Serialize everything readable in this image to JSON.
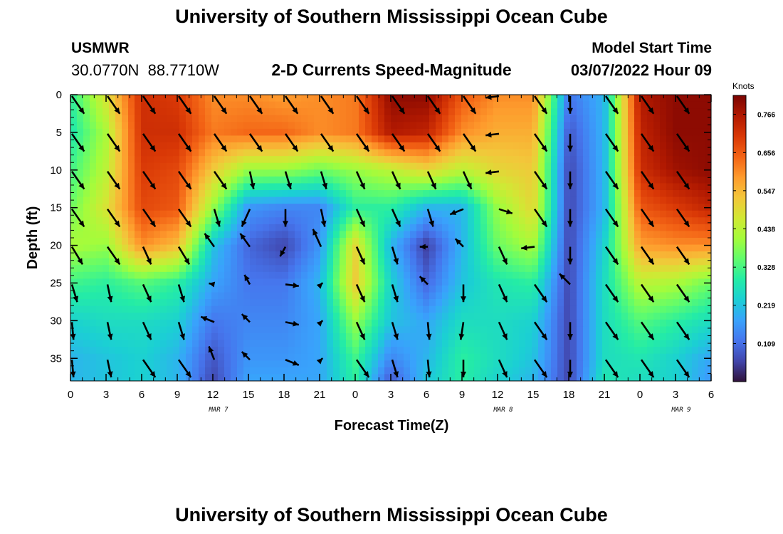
{
  "header": {
    "title": "University of Southern Mississippi Ocean Cube",
    "station": "USMWR",
    "latitude": "30.0770N",
    "longitude": "88.7710W",
    "subtitle": "2-D Currents Speed-Magnitude",
    "model_start_label": "Model Start Time",
    "model_start_value": "03/07/2022 Hour 09"
  },
  "footer": {
    "title": "University of Southern Mississippi Ocean Cube"
  },
  "chart_data": {
    "type": "heatmap",
    "xlabel": "Forecast Time(Z)",
    "ylabel": "Depth (ft)",
    "colorbar_label": "Knots",
    "colorbar_ticks": [
      0.109,
      0.219,
      0.328,
      0.438,
      0.547,
      0.656,
      0.766
    ],
    "color_range": [
      0.0,
      0.82
    ],
    "colormap": [
      "#30123b",
      "#4145ab",
      "#4675ed",
      "#39a2fc",
      "#1bcfd4",
      "#24eca6",
      "#61fc6c",
      "#a4fc3b",
      "#d1e834",
      "#f3c63a",
      "#fe9b2d",
      "#f36315",
      "#d93806",
      "#b11901",
      "#7a0402"
    ],
    "x_ticks": [
      "0",
      "3",
      "6",
      "9",
      "12",
      "15",
      "18",
      "21",
      "0",
      "3",
      "6",
      "9",
      "12",
      "15",
      "18",
      "21",
      "0",
      "3",
      "6"
    ],
    "date_labels": [
      {
        "hour": 15,
        "label": "MAR 7"
      },
      {
        "hour": 39,
        "label": "MAR 8"
      },
      {
        "hour": 63,
        "label": "MAR 9"
      }
    ],
    "x_range_hours": [
      0,
      54
    ],
    "y_ticks": [
      0,
      5,
      10,
      15,
      20,
      25,
      30,
      35
    ],
    "ylim": [
      0,
      38
    ],
    "depths_ft": [
      0,
      5,
      10,
      15,
      20,
      25,
      30,
      35,
      38
    ],
    "times_hours": [
      0,
      3,
      6,
      9,
      12,
      15,
      18,
      21,
      24,
      27,
      30,
      33,
      36,
      39,
      42,
      45,
      48,
      51,
      54
    ],
    "speed_knots": [
      [
        0.3,
        0.48,
        0.72,
        0.7,
        0.6,
        0.6,
        0.58,
        0.6,
        0.62,
        0.8,
        0.8,
        0.66,
        0.6,
        0.6,
        0.12,
        0.2,
        0.76,
        0.8,
        0.8
      ],
      [
        0.28,
        0.42,
        0.72,
        0.72,
        0.62,
        0.64,
        0.64,
        0.6,
        0.62,
        0.76,
        0.74,
        0.6,
        0.56,
        0.56,
        0.08,
        0.2,
        0.74,
        0.8,
        0.8
      ],
      [
        0.32,
        0.44,
        0.7,
        0.68,
        0.52,
        0.4,
        0.4,
        0.36,
        0.4,
        0.44,
        0.5,
        0.44,
        0.5,
        0.52,
        0.06,
        0.2,
        0.72,
        0.78,
        0.8
      ],
      [
        0.36,
        0.48,
        0.68,
        0.66,
        0.4,
        0.16,
        0.14,
        0.14,
        0.3,
        0.3,
        0.2,
        0.2,
        0.4,
        0.5,
        0.06,
        0.2,
        0.66,
        0.7,
        0.74
      ],
      [
        0.42,
        0.4,
        0.6,
        0.54,
        0.22,
        0.1,
        0.06,
        0.16,
        0.5,
        0.2,
        0.05,
        0.2,
        0.36,
        0.42,
        0.06,
        0.24,
        0.58,
        0.6,
        0.6
      ],
      [
        0.32,
        0.3,
        0.34,
        0.3,
        0.18,
        0.12,
        0.12,
        0.2,
        0.52,
        0.24,
        0.1,
        0.22,
        0.28,
        0.3,
        0.06,
        0.26,
        0.44,
        0.42,
        0.36
      ],
      [
        0.24,
        0.26,
        0.26,
        0.24,
        0.12,
        0.14,
        0.14,
        0.18,
        0.4,
        0.22,
        0.18,
        0.26,
        0.26,
        0.24,
        0.06,
        0.26,
        0.34,
        0.3,
        0.26
      ],
      [
        0.2,
        0.22,
        0.24,
        0.2,
        0.08,
        0.16,
        0.16,
        0.18,
        0.32,
        0.14,
        0.2,
        0.3,
        0.26,
        0.22,
        0.06,
        0.26,
        0.28,
        0.24,
        0.18
      ],
      [
        0.2,
        0.22,
        0.24,
        0.2,
        0.06,
        0.18,
        0.18,
        0.18,
        0.3,
        0.08,
        0.22,
        0.3,
        0.24,
        0.2,
        0.06,
        0.28,
        0.26,
        0.24,
        0.16
      ]
    ],
    "vectors": [
      {
        "t": 0,
        "d": [
          [
            2.3,
            3.3
          ],
          [
            2.3,
            3.3
          ],
          [
            2.3,
            3.3
          ],
          [
            2.3,
            3.3
          ],
          [
            2.0,
            3.3
          ],
          [
            1.0,
            3.3
          ],
          [
            0.3,
            3.3
          ],
          [
            0.3,
            3.3
          ]
        ]
      },
      {
        "t": 3,
        "d": [
          [
            2.3,
            3.3
          ],
          [
            2.3,
            3.3
          ],
          [
            2.3,
            3.3
          ],
          [
            2.3,
            3.3
          ],
          [
            2.3,
            3.3
          ],
          [
            0.7,
            3.3
          ],
          [
            0.7,
            3.3
          ],
          [
            0.7,
            3.3
          ]
        ]
      },
      {
        "t": 6,
        "d": [
          [
            2.3,
            3.3
          ],
          [
            2.3,
            3.3
          ],
          [
            2.3,
            3.3
          ],
          [
            2.3,
            3.3
          ],
          [
            1.5,
            3.3
          ],
          [
            1.5,
            3.3
          ],
          [
            1.5,
            3.3
          ],
          [
            2.3,
            3.3
          ]
        ]
      },
      {
        "t": 9,
        "d": [
          [
            2.3,
            3.3
          ],
          [
            2.3,
            3.3
          ],
          [
            2.3,
            3.3
          ],
          [
            2.3,
            3.3
          ],
          [
            2.0,
            3.3
          ],
          [
            1.0,
            3.3
          ],
          [
            1.0,
            3.3
          ],
          [
            2.3,
            3.3
          ]
        ]
      },
      {
        "t": 12,
        "d": [
          [
            2.3,
            3.3
          ],
          [
            2.3,
            3.3
          ],
          [
            2.3,
            3.3
          ],
          [
            1.0,
            3.3
          ],
          [
            -1.8,
            -2.5
          ],
          [
            -1.0,
            -0.2
          ],
          [
            -2.5,
            -1.0
          ],
          [
            -1.0,
            -2.5
          ]
        ]
      },
      {
        "t": 15,
        "d": [
          [
            2.3,
            3.3
          ],
          [
            2.3,
            3.3
          ],
          [
            0.7,
            3.3
          ],
          [
            -1.5,
            3.3
          ],
          [
            -1.8,
            -2.5
          ],
          [
            -1.0,
            -1.8
          ],
          [
            -1.5,
            -1.5
          ],
          [
            -1.5,
            -1.5
          ]
        ]
      },
      {
        "t": 18,
        "d": [
          [
            2.3,
            3.3
          ],
          [
            2.3,
            3.3
          ],
          [
            1.0,
            3.3
          ],
          [
            0.0,
            3.3
          ],
          [
            -1.0,
            1.8
          ],
          [
            2.5,
            0.3
          ],
          [
            2.5,
            0.5
          ],
          [
            2.5,
            1.0
          ]
        ]
      },
      {
        "t": 21,
        "d": [
          [
            2.3,
            3.3
          ],
          [
            2.3,
            3.3
          ],
          [
            1.0,
            3.3
          ],
          [
            0.7,
            3.3
          ],
          [
            -1.5,
            -3.3
          ],
          [
            0.3,
            -0.3
          ],
          [
            0.3,
            -0.3
          ],
          [
            0.3,
            -0.3
          ]
        ]
      },
      {
        "t": 24,
        "d": [
          [
            2.3,
            3.3
          ],
          [
            2.3,
            3.3
          ],
          [
            1.5,
            3.3
          ],
          [
            1.5,
            3.3
          ],
          [
            1.5,
            3.3
          ],
          [
            1.5,
            3.3
          ],
          [
            1.5,
            3.3
          ],
          [
            2.3,
            3.3
          ]
        ]
      },
      {
        "t": 27,
        "d": [
          [
            2.3,
            3.3
          ],
          [
            2.3,
            3.3
          ],
          [
            1.5,
            3.3
          ],
          [
            1.5,
            3.3
          ],
          [
            1.0,
            3.3
          ],
          [
            1.0,
            3.3
          ],
          [
            1.0,
            3.3
          ],
          [
            1.0,
            3.3
          ]
        ]
      },
      {
        "t": 30,
        "d": [
          [
            2.3,
            3.3
          ],
          [
            2.3,
            3.3
          ],
          [
            1.5,
            3.3
          ],
          [
            1.0,
            3.3
          ],
          [
            -1.5,
            0.0
          ],
          [
            -1.5,
            -1.5
          ],
          [
            0.3,
            3.3
          ],
          [
            0.3,
            3.3
          ]
        ]
      },
      {
        "t": 33,
        "d": [
          [
            2.3,
            3.3
          ],
          [
            2.3,
            3.3
          ],
          [
            1.5,
            3.3
          ],
          [
            -2.5,
            1.0
          ],
          [
            -1.5,
            -1.5
          ],
          [
            0.0,
            3.3
          ],
          [
            -0.5,
            3.3
          ],
          [
            0.0,
            3.3
          ]
        ]
      },
      {
        "t": 36,
        "d": [
          [
            -2.5,
            0.3
          ],
          [
            -2.5,
            0.3
          ],
          [
            -2.5,
            0.3
          ],
          [
            2.5,
            0.8
          ],
          [
            1.5,
            3.3
          ],
          [
            1.5,
            3.3
          ],
          [
            1.5,
            3.3
          ],
          [
            1.5,
            3.3
          ]
        ]
      },
      {
        "t": 39,
        "d": [
          [
            2.3,
            3.3
          ],
          [
            2.3,
            3.3
          ],
          [
            2.3,
            3.3
          ],
          [
            2.3,
            3.3
          ],
          [
            -2.5,
            0.3
          ],
          [
            2.3,
            3.3
          ],
          [
            2.3,
            3.3
          ],
          [
            2.3,
            3.3
          ]
        ]
      },
      {
        "t": 42,
        "d": [
          [
            0.0,
            3.3
          ],
          [
            0.0,
            3.3
          ],
          [
            0.0,
            3.3
          ],
          [
            0.0,
            3.3
          ],
          [
            0.0,
            3.3
          ],
          [
            -2.0,
            -2.0
          ],
          [
            0.0,
            3.3
          ],
          [
            0.0,
            3.3
          ]
        ]
      },
      {
        "t": 45,
        "d": [
          [
            2.3,
            3.3
          ],
          [
            2.3,
            3.3
          ],
          [
            2.3,
            3.3
          ],
          [
            2.3,
            3.3
          ],
          [
            2.3,
            3.3
          ],
          [
            2.3,
            3.3
          ],
          [
            2.3,
            3.3
          ],
          [
            2.3,
            3.3
          ]
        ]
      },
      {
        "t": 48,
        "d": [
          [
            2.3,
            3.3
          ],
          [
            2.3,
            3.3
          ],
          [
            2.3,
            3.3
          ],
          [
            2.3,
            3.3
          ],
          [
            2.3,
            3.3
          ],
          [
            2.3,
            3.3
          ],
          [
            2.3,
            3.3
          ],
          [
            2.3,
            3.3
          ]
        ]
      },
      {
        "t": 51,
        "d": [
          [
            2.3,
            3.3
          ],
          [
            2.3,
            3.3
          ],
          [
            2.3,
            3.3
          ],
          [
            2.3,
            3.3
          ],
          [
            2.3,
            3.3
          ],
          [
            2.3,
            3.3
          ],
          [
            2.3,
            3.3
          ],
          [
            2.3,
            3.3
          ]
        ]
      }
    ]
  }
}
